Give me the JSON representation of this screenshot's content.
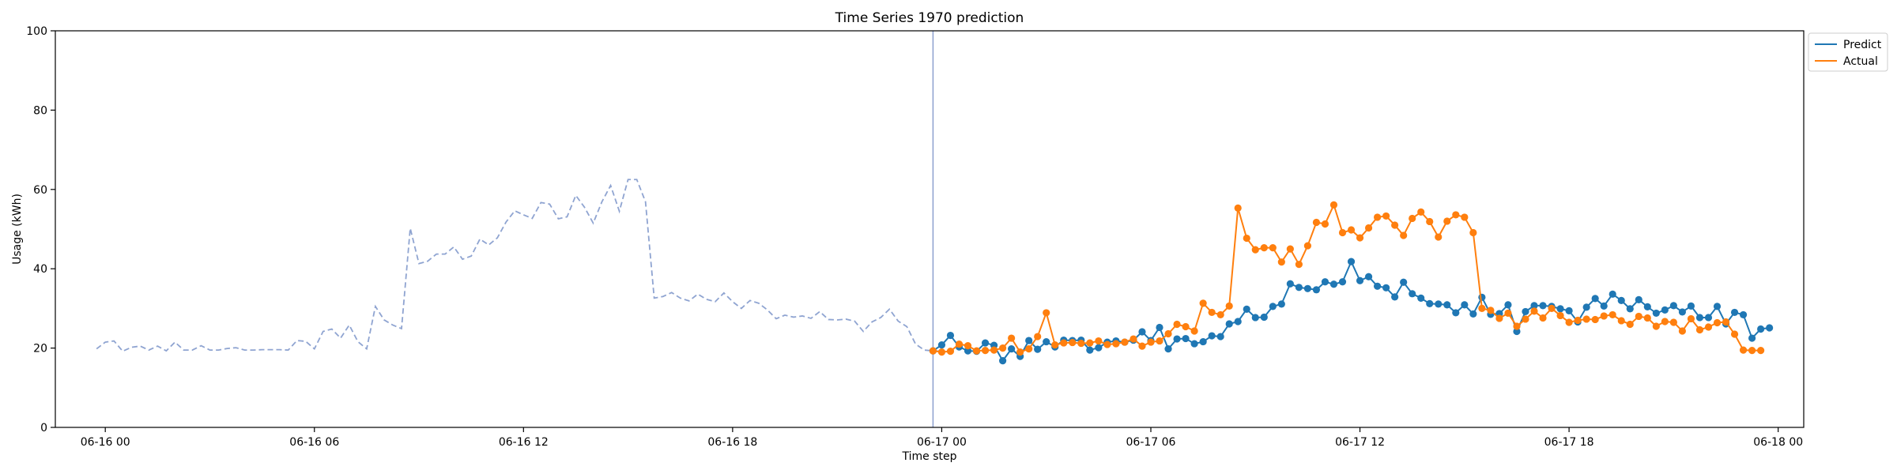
{
  "chart_data": {
    "type": "line",
    "title": "Time Series 1970 prediction",
    "xlabel": "Time step",
    "ylabel": "Usage (kWh)",
    "ylim": [
      0,
      100
    ],
    "xlim": [
      "2023-06-15T22:34",
      "2023-06-18T00:44"
    ],
    "x_ticks": [
      {
        "x": "2023-06-16T00:00",
        "label": "06-16 00"
      },
      {
        "x": "2023-06-16T06:00",
        "label": "06-16 06"
      },
      {
        "x": "2023-06-16T12:00",
        "label": "06-16 12"
      },
      {
        "x": "2023-06-16T18:00",
        "label": "06-16 18"
      },
      {
        "x": "2023-06-17T00:00",
        "label": "06-17 00"
      },
      {
        "x": "2023-06-17T06:00",
        "label": "06-17 06"
      },
      {
        "x": "2023-06-17T12:00",
        "label": "06-17 12"
      },
      {
        "x": "2023-06-17T18:00",
        "label": "06-17 18"
      },
      {
        "x": "2023-06-18T00:00",
        "label": "06-18 00"
      }
    ],
    "y_ticks": [
      0,
      20,
      40,
      60,
      80,
      100
    ],
    "grid": false,
    "legend": {
      "placement": "upper-right-outside"
    },
    "vertical_line": {
      "x": "2023-06-16T23:45",
      "color": "#8c9fcf"
    },
    "history_series": {
      "color": "#8fa4d1",
      "style": "dashed",
      "start": "2023-06-15T23:45",
      "interval_minutes": 15,
      "values": [
        19.8,
        21.5,
        21.8,
        19.2,
        20.2,
        20.5,
        19.5,
        20.5,
        19.3,
        21.5,
        19.5,
        19.5,
        20.6,
        19.5,
        19.5,
        19.9,
        20.1,
        19.5,
        19.5,
        19.6,
        19.6,
        19.6,
        19.5,
        21.9,
        21.7,
        19.8,
        24.2,
        24.8,
        22.5,
        25.8,
        21.6,
        19.8,
        30.5,
        27.1,
        25.8,
        24.9,
        50.2,
        41.3,
        41.9,
        43.7,
        43.7,
        45.5,
        42.4,
        43.2,
        47.5,
        46.0,
        47.8,
        51.8,
        54.6,
        53.6,
        52.7,
        56.7,
        56.3,
        52.6,
        53.1,
        58.5,
        55.5,
        51.5,
        56.9,
        61.0,
        54.5,
        62.5,
        62.5,
        56.9,
        32.6,
        33.0,
        34.0,
        32.6,
        31.9,
        33.6,
        32.3,
        31.7,
        33.9,
        31.7,
        30.0,
        32.0,
        31.3,
        29.6,
        27.4,
        28.3,
        27.8,
        28.1,
        27.5,
        29.2,
        27.2,
        27.1,
        27.3,
        26.8,
        24.2,
        26.6,
        27.7,
        29.8,
        26.8,
        25.4,
        21.0,
        19.5,
        19.3,
        19.2
      ]
    },
    "series": [
      {
        "name": "Predict",
        "color": "#1f77b4",
        "start": "2023-06-16T23:45",
        "interval_minutes": 15,
        "values": [
          19.3,
          20.8,
          23.2,
          20.3,
          19.3,
          19.2,
          21.3,
          20.7,
          16.8,
          19.8,
          17.9,
          21.9,
          19.7,
          21.6,
          20.3,
          22.0,
          21.9,
          22.0,
          19.5,
          20.1,
          21.5,
          21.8,
          21.5,
          22.0,
          24.1,
          21.9,
          25.2,
          19.8,
          22.3,
          22.4,
          21.1,
          21.6,
          23.1,
          22.9,
          26.1,
          26.7,
          29.8,
          27.7,
          27.8,
          30.5,
          31.1,
          36.2,
          35.3,
          35.0,
          34.7,
          36.7,
          36.1,
          36.7,
          41.8,
          37.0,
          38.0,
          35.6,
          35.2,
          32.9,
          36.6,
          33.7,
          32.6,
          31.2,
          31.1,
          30.9,
          28.9,
          30.9,
          28.6,
          32.8,
          28.5,
          28.7,
          30.9,
          24.2,
          29.2,
          30.7,
          30.7,
          30.5,
          29.9,
          29.4,
          26.6,
          30.3,
          32.5,
          30.6,
          33.6,
          32.0,
          29.9,
          32.2,
          30.4,
          28.8,
          29.6,
          30.7,
          29.1,
          30.6,
          27.7,
          27.7,
          30.5,
          26.1,
          29.0,
          28.4,
          22.5,
          24.8,
          25.1
        ]
      },
      {
        "name": "Actual",
        "color": "#ff7f0e",
        "start": "2023-06-16T23:45",
        "interval_minutes": 15,
        "values": [
          19.3,
          19.0,
          19.2,
          21.0,
          20.6,
          19.3,
          19.4,
          19.5,
          20.0,
          22.5,
          19.0,
          19.8,
          22.9,
          28.9,
          20.8,
          21.3,
          21.4,
          21.2,
          21.3,
          21.8,
          20.9,
          21.1,
          21.5,
          22.3,
          20.5,
          21.5,
          21.8,
          23.6,
          26.0,
          25.4,
          24.3,
          31.3,
          29.0,
          28.4,
          30.6,
          55.3,
          47.7,
          44.8,
          45.3,
          45.3,
          41.7,
          45.0,
          41.1,
          45.8,
          51.7,
          51.3,
          56.1,
          49.1,
          49.8,
          47.8,
          50.3,
          53.0,
          53.3,
          51.0,
          48.4,
          52.7,
          54.3,
          51.9,
          48.0,
          52.0,
          53.6,
          53.0,
          49.1,
          30.0,
          29.5,
          27.5,
          28.8,
          25.5,
          27.3,
          29.3,
          27.6,
          30.0,
          28.2,
          26.5,
          27.0,
          27.3,
          27.2,
          28.1,
          28.4,
          26.9,
          26.0,
          28.0,
          27.6,
          25.5,
          26.7,
          26.5,
          24.3,
          27.4,
          24.6,
          25.3,
          26.4,
          26.6,
          23.5,
          19.5,
          19.4,
          19.4
        ]
      }
    ]
  }
}
